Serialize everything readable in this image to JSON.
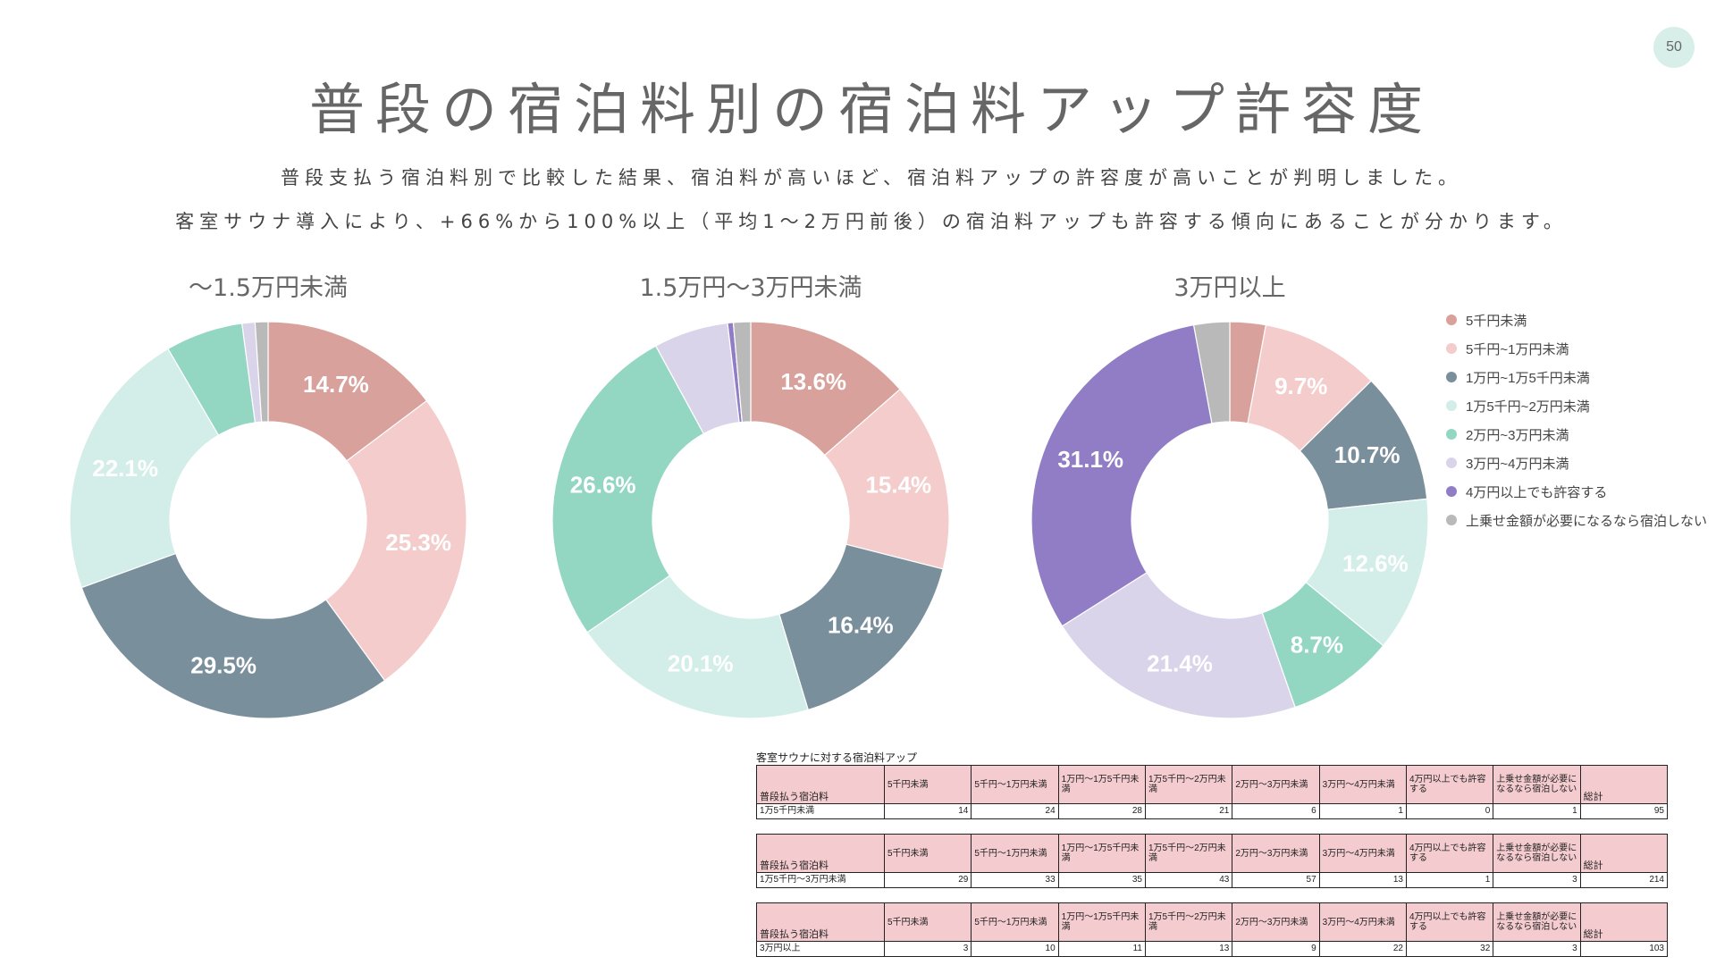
{
  "page_number": "50",
  "title": "普段の宿泊料別の宿泊料アップ許容度",
  "subtitle_lines": [
    "普段支払う宿泊料別で比較した結果、宿泊料が高いほど、宿泊料アップの許容度が高いことが判明しました。",
    "客室サウナ導入により、+66%から100%以上（平均1～2万円前後）の宿泊料アップも許容する傾向にあることが分かります。"
  ],
  "legend": [
    {
      "label": "5千円未満",
      "color": "#d9a19c"
    },
    {
      "label": "5千円~1万円未満",
      "color": "#f3cccb"
    },
    {
      "label": "1万円~1万5千円未満",
      "color": "#7a8f9c"
    },
    {
      "label": "1万5千円~2万円未満",
      "color": "#d3eee8"
    },
    {
      "label": "2万円~3万円未満",
      "color": "#93d7c3"
    },
    {
      "label": "3万円~4万円未満",
      "color": "#dad4ea"
    },
    {
      "label": "4万円以上でも許容する",
      "color": "#917dc6"
    },
    {
      "label": "上乗せ金額が必要になるなら宿泊しない",
      "color": "#b9b9b9"
    }
  ],
  "chart_data": [
    {
      "type": "pie",
      "title": "～1.5万円未満",
      "categories": [
        "5千円未満",
        "5千円~1万円未満",
        "1万円~1万5千円未満",
        "1万5千円~2万円未満",
        "2万円~3万円未満",
        "3万円~4万円未満",
        "4万円以上でも許容する",
        "上乗せ金額が必要になるなら宿泊しない"
      ],
      "values": [
        14,
        24,
        28,
        21,
        6,
        1,
        0,
        1
      ],
      "labels": [
        "14.7%",
        "25.3%",
        "29.5%",
        "22.1%",
        "",
        "",
        "",
        ""
      ]
    },
    {
      "type": "pie",
      "title": "1.5万円～3万円未満",
      "categories": [
        "5千円未満",
        "5千円~1万円未満",
        "1万円~1万5千円未満",
        "1万5千円~2万円未満",
        "2万円~3万円未満",
        "3万円~4万円未満",
        "4万円以上でも許容する",
        "上乗せ金額が必要になるなら宿泊しない"
      ],
      "values": [
        29,
        33,
        35,
        43,
        57,
        13,
        1,
        3
      ],
      "labels": [
        "13.6%",
        "15.4%",
        "16.4%",
        "20.1%",
        "26.6%",
        "",
        "",
        ""
      ]
    },
    {
      "type": "pie",
      "title": "3万円以上",
      "categories": [
        "5千円未満",
        "5千円~1万円未満",
        "1万円~1万5千円未満",
        "1万5千円~2万円未満",
        "2万円~3万円未満",
        "3万円~4万円未満",
        "4万円以上でも許容する",
        "上乗せ金額が必要になるなら宿泊しない"
      ],
      "values": [
        3,
        10,
        11,
        13,
        9,
        22,
        32,
        3
      ],
      "labels": [
        "",
        "9.7%",
        "10.7%",
        "12.6%",
        "8.7%",
        "21.4%",
        "31.1%",
        ""
      ]
    }
  ],
  "table": {
    "caption": "客室サウナに対する宿泊料アップ",
    "row_header": "普段払う宿泊料",
    "columns": [
      "5千円未満",
      "5千円～1万円未満",
      "1万円～1万5千円未満",
      "1万5千円～2万円未満",
      "2万円～3万円未満",
      "3万円～4万円未満",
      "4万円以上でも許容する",
      "上乗せ金額が必要になるなら宿泊しない",
      "総計"
    ],
    "blocks": [
      {
        "label": "1万5千円未満",
        "values": [
          "14",
          "24",
          "28",
          "21",
          "6",
          "1",
          "0",
          "1",
          "95"
        ]
      },
      {
        "label": "1万5千円～3万円未満",
        "values": [
          "29",
          "33",
          "35",
          "43",
          "57",
          "13",
          "1",
          "3",
          "214"
        ]
      },
      {
        "label": "3万円以上",
        "values": [
          "3",
          "10",
          "11",
          "13",
          "9",
          "22",
          "32",
          "3",
          "103"
        ]
      }
    ]
  }
}
